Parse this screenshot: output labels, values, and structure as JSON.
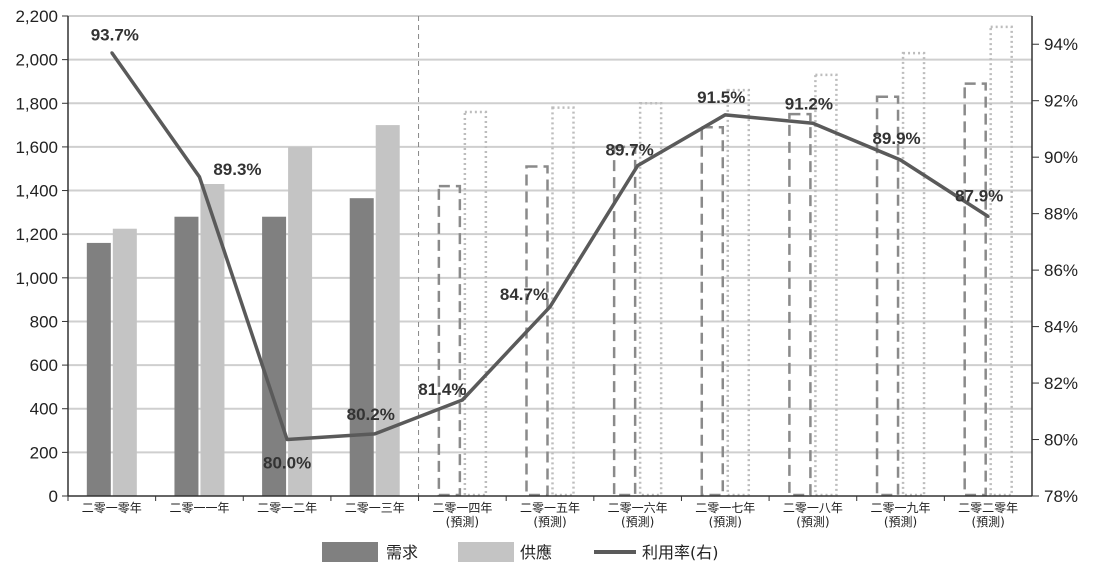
{
  "chart_data": {
    "type": "bar+line",
    "categories": [
      [
        "二零一零年"
      ],
      [
        "二零一一年"
      ],
      [
        "二零一二年"
      ],
      [
        "二零一三年"
      ],
      [
        "二零一四年",
        "(預測)"
      ],
      [
        "二零一五年",
        "(預測)"
      ],
      [
        "二零一六年",
        "(預測)"
      ],
      [
        "二零一七年",
        "(預測)"
      ],
      [
        "二零一八年",
        "(預測)"
      ],
      [
        "二零一九年",
        "(預測)"
      ],
      [
        "二零二零年",
        "(預測)"
      ]
    ],
    "forecast_from_index": 4,
    "series": [
      {
        "name": "需求",
        "kind": "bar",
        "axis": "left",
        "color": "#808080",
        "values": [
          1160,
          1280,
          1280,
          1365,
          1420,
          1510,
          1600,
          1690,
          1750,
          1830,
          1890
        ]
      },
      {
        "name": "供應",
        "kind": "bar",
        "axis": "left",
        "color": "#c4c4c4",
        "values": [
          1225,
          1430,
          1600,
          1700,
          1760,
          1780,
          1800,
          1860,
          1930,
          2030,
          2150
        ]
      },
      {
        "name": "利用率(右)",
        "kind": "line",
        "axis": "right",
        "color": "#5a5a5a",
        "values": [
          93.7,
          89.3,
          80.0,
          80.2,
          81.4,
          84.7,
          89.7,
          91.5,
          91.2,
          89.9,
          87.9
        ],
        "labels": [
          "93.7%",
          "89.3%",
          "80.0%",
          "80.2%",
          "81.4%",
          "84.7%",
          "89.7%",
          "91.5%",
          "91.2%",
          "89.9%",
          "87.9%"
        ]
      }
    ],
    "y_left": {
      "min": 0,
      "max": 2200,
      "step": 200,
      "ticks": [
        "0",
        "200",
        "400",
        "600",
        "800",
        "1,000",
        "1,200",
        "1,400",
        "1,600",
        "1,800",
        "2,000",
        "2,200"
      ]
    },
    "y_right": {
      "min": 78,
      "max": 95,
      "ticks": [
        {
          "v": 78,
          "t": "78%"
        },
        {
          "v": 80,
          "t": "80%"
        },
        {
          "v": 82,
          "t": "82%"
        },
        {
          "v": 84,
          "t": "84%"
        },
        {
          "v": 86,
          "t": "86%"
        },
        {
          "v": 88,
          "t": "88%"
        },
        {
          "v": 90,
          "t": "90%"
        },
        {
          "v": 92,
          "t": "92%"
        },
        {
          "v": 94,
          "t": "94%"
        }
      ]
    },
    "grid": true,
    "legend": {
      "position": "bottom",
      "items": [
        "需求",
        "供應",
        "利用率(右)"
      ]
    }
  }
}
